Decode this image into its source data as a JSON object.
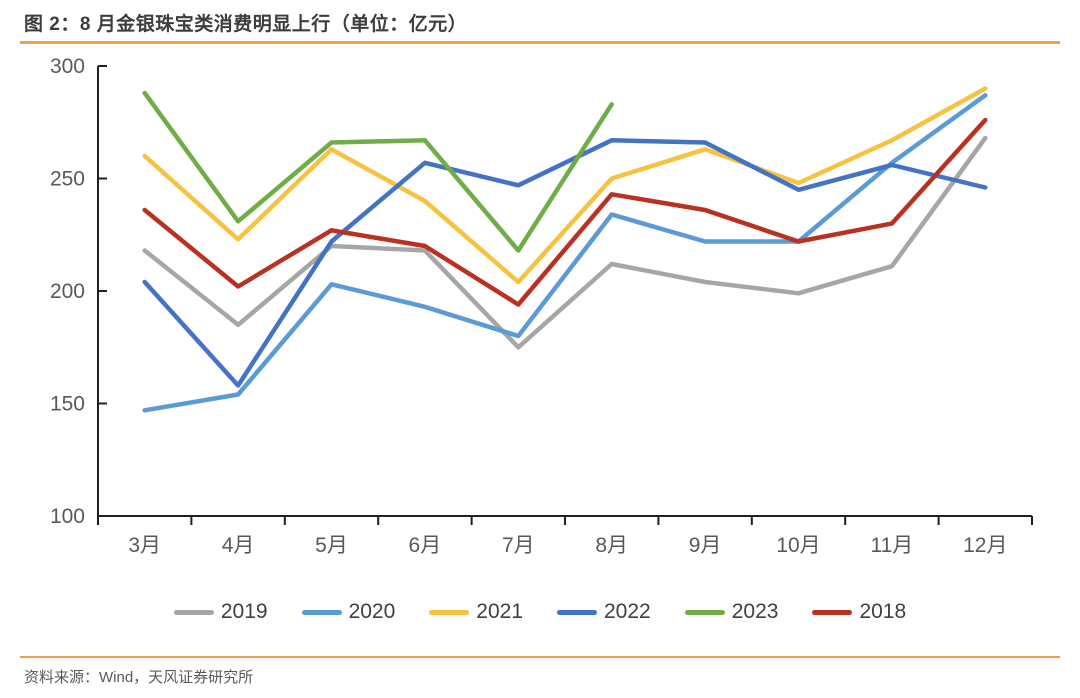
{
  "title": "图 2：8 月金银珠宝类消费明显上行（单位：亿元）",
  "source": "资料来源：Wind，天风证券研究所",
  "accent_color": "#F0A150",
  "chart_data": {
    "type": "line",
    "title": "图 2：8 月金银珠宝类消费明显上行（单位：亿元）",
    "unit": "亿元",
    "categories": [
      "3月",
      "4月",
      "5月",
      "6月",
      "7月",
      "8月",
      "9月",
      "10月",
      "11月",
      "12月"
    ],
    "series": [
      {
        "name": "2019",
        "color": "#A6A6A6",
        "values": [
          218,
          185,
          220,
          218,
          175,
          212,
          204,
          199,
          211,
          268
        ]
      },
      {
        "name": "2020",
        "color": "#5B9BD5",
        "values": [
          147,
          154,
          203,
          193,
          180,
          234,
          222,
          222,
          257,
          287
        ]
      },
      {
        "name": "2021",
        "color": "#F7C242",
        "values": [
          260,
          223,
          263,
          240,
          204,
          250,
          263,
          248,
          267,
          290
        ]
      },
      {
        "name": "2022",
        "color": "#4472C4",
        "values": [
          204,
          158,
          222,
          257,
          247,
          267,
          266,
          245,
          256,
          246
        ]
      },
      {
        "name": "2023",
        "color": "#70AD47",
        "values": [
          288,
          231,
          266,
          267,
          218,
          283,
          null,
          null,
          null,
          null
        ]
      },
      {
        "name": "2018",
        "color": "#BB3121",
        "values": [
          236,
          202,
          227,
          220,
          194,
          243,
          236,
          222,
          230,
          276
        ]
      }
    ],
    "ylim": [
      100,
      300
    ],
    "yticks": [
      100,
      150,
      200,
      250,
      300
    ],
    "grid": false,
    "legend_position": "bottom",
    "axis_color": "#1f1f1f",
    "tick_label_color": "#595959"
  }
}
